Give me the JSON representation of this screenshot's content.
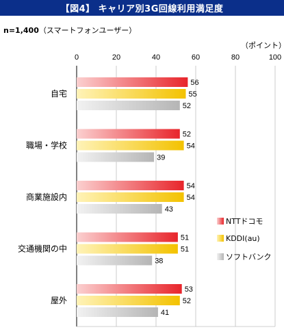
{
  "title": "【図4】 キャリア別3G回線利用満足度",
  "sample": "n=1,400",
  "sample_note": "（スマートフォンユーザー）",
  "unit_label": "（ポイント）",
  "colors": {
    "title_bg": "#0b2f8a",
    "ntt_dark": "#e8252b",
    "ntt_light": "#fbd0d0",
    "kddi_dark": "#f3c200",
    "kddi_light": "#fff3b8",
    "soft_dark": "#b5b5b5",
    "soft_light": "#f2f2f2"
  },
  "chart_data": {
    "type": "bar",
    "orientation": "horizontal",
    "categories": [
      "自宅",
      "職場・学校",
      "商業施設内",
      "交通機関の中",
      "屋外"
    ],
    "series": [
      {
        "name": "NTTドコモ",
        "values": [
          56,
          52,
          54,
          51,
          53
        ]
      },
      {
        "name": "KDDI(au)",
        "values": [
          55,
          54,
          54,
          51,
          52
        ]
      },
      {
        "name": "ソフトバンク",
        "values": [
          52,
          39,
          43,
          38,
          41
        ]
      }
    ],
    "xlim": [
      0,
      100
    ],
    "xticks": [
      "0",
      "20",
      "40",
      "60",
      "80",
      "100"
    ],
    "grid": true,
    "legend_position": "right"
  }
}
